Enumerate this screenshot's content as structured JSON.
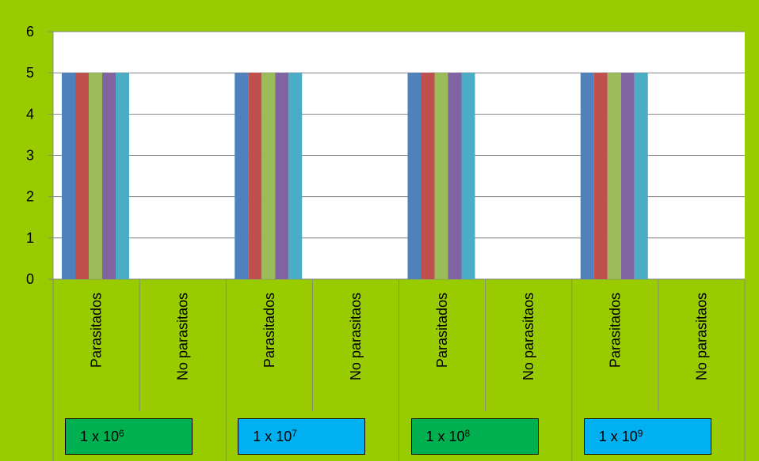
{
  "chart_data": {
    "type": "bar",
    "ylim": [
      0,
      6
    ],
    "yticks": [
      "0",
      "1",
      "2",
      "3",
      "4",
      "5",
      "6"
    ],
    "grid": true,
    "colors": [
      "#4f81bd",
      "#c0504d",
      "#9bbb59",
      "#8064a2",
      "#4bacc6"
    ],
    "groups": [
      {
        "base": "1 x 10",
        "exp": "6",
        "box_color": "#00b050",
        "categories": [
          {
            "label": "Parasitados",
            "values": [
              5,
              5,
              5,
              5,
              5
            ]
          },
          {
            "label": "No parasitaos",
            "values": [
              0,
              0,
              0,
              0,
              0
            ]
          }
        ]
      },
      {
        "base": "1 x 10",
        "exp": "7",
        "box_color": "#00b0f0",
        "categories": [
          {
            "label": "Parasitados",
            "values": [
              5,
              5,
              5,
              5,
              5
            ]
          },
          {
            "label": "No parasitaos",
            "values": [
              0,
              0,
              0,
              0,
              0
            ]
          }
        ]
      },
      {
        "base": "1 x 10",
        "exp": "8",
        "box_color": "#00b050",
        "categories": [
          {
            "label": "Parasitados",
            "values": [
              5,
              5,
              5,
              5,
              5
            ]
          },
          {
            "label": "No parasitaos",
            "values": [
              0,
              0,
              0,
              0,
              0
            ]
          }
        ]
      },
      {
        "base": "1 x 10",
        "exp": "9",
        "box_color": "#00b0f0",
        "categories": [
          {
            "label": "Parasitados",
            "values": [
              5,
              5,
              5,
              5,
              5
            ]
          },
          {
            "label": "No parasitaos",
            "values": [
              0,
              0,
              0,
              0,
              0
            ]
          }
        ]
      }
    ]
  }
}
